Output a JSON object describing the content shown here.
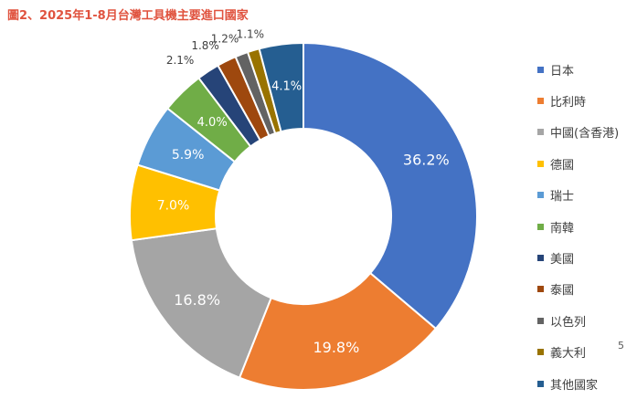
{
  "title": "圖2、2025年1-8月台灣工具機主要進口國家",
  "page_number": "5",
  "chart_data": {
    "type": "pie",
    "variant": "donut",
    "title": "圖2、2025年1-8月台灣工具機主要進口國家",
    "categories": [
      "日本",
      "比利時",
      "中國(含香港)",
      "德國",
      "瑞士",
      "南韓",
      "美國",
      "泰國",
      "以色列",
      "義大利",
      "其他國家"
    ],
    "values": [
      36.2,
      19.8,
      16.8,
      7.0,
      5.9,
      4.0,
      2.1,
      1.8,
      1.2,
      1.1,
      4.1
    ],
    "labels": [
      "36.2%",
      "19.8%",
      "16.8%",
      "7.0%",
      "5.9%",
      "4.0%",
      "2.1%",
      "1.8%",
      "1.2%",
      "1.1%",
      "4.1%"
    ],
    "unit": "%",
    "colors": [
      "#4472c4",
      "#ed7d31",
      "#a5a5a5",
      "#ffc000",
      "#5b9bd5",
      "#70ad47",
      "#264478",
      "#9e480e",
      "#636363",
      "#997300",
      "#255e91"
    ],
    "legend_position": "right",
    "label_style": [
      "inside",
      "inside",
      "inside",
      "inside",
      "inside",
      "inside",
      "outside",
      "outside",
      "outside",
      "outside",
      "inside"
    ]
  }
}
